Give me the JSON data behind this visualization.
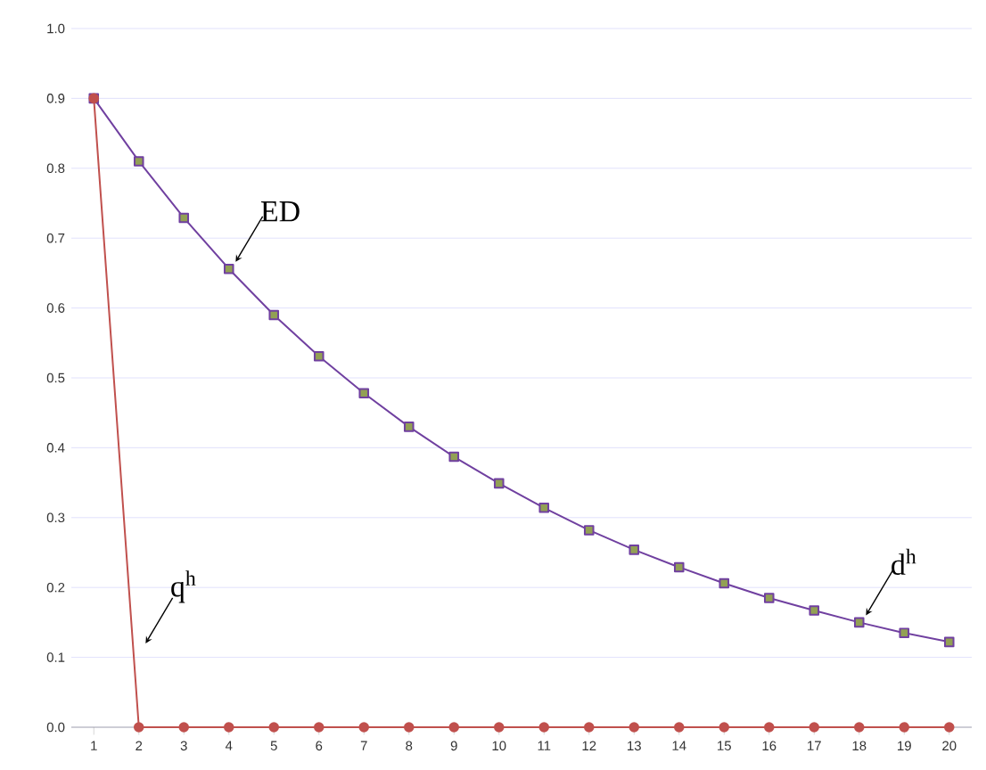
{
  "chart_data": {
    "type": "line",
    "categories": [
      "1",
      "2",
      "3",
      "4",
      "5",
      "6",
      "7",
      "8",
      "9",
      "10",
      "11",
      "12",
      "13",
      "14",
      "15",
      "16",
      "17",
      "18",
      "19",
      "20"
    ],
    "series": [
      {
        "color": "#7040a0",
        "marker": "square",
        "values": [
          0.9,
          0.81,
          0.729,
          0.656,
          0.59,
          0.531,
          0.478,
          0.43,
          0.387,
          0.349,
          0.314,
          0.282,
          0.254,
          0.229,
          0.206,
          0.185,
          0.167,
          0.15,
          0.135,
          0.122
        ]
      },
      {
        "color": "#c0504d",
        "marker": "circle",
        "values": [
          0.9,
          0,
          0,
          0,
          0,
          0,
          0,
          0,
          0,
          0,
          0,
          0,
          0,
          0,
          0,
          0,
          0,
          0,
          0,
          0
        ]
      }
    ],
    "ylim": [
      0,
      1.0
    ],
    "yticks": [
      {
        "value": 0,
        "label": "0.0"
      },
      0.1,
      0.2,
      0.3,
      0.4,
      0.5,
      0.6,
      0.7,
      0.8,
      0.9,
      {
        "value": 1.0,
        "label": "1.0"
      }
    ],
    "grid": "y",
    "annotations": [
      {
        "text": "ED",
        "x": "4",
        "y": 0.656
      },
      {
        "text": "q$^{h}$",
        "x": "2",
        "y": 0.11
      },
      {
        "text": "d$^{h}$",
        "x": "18",
        "y": 0.15
      }
    ]
  }
}
